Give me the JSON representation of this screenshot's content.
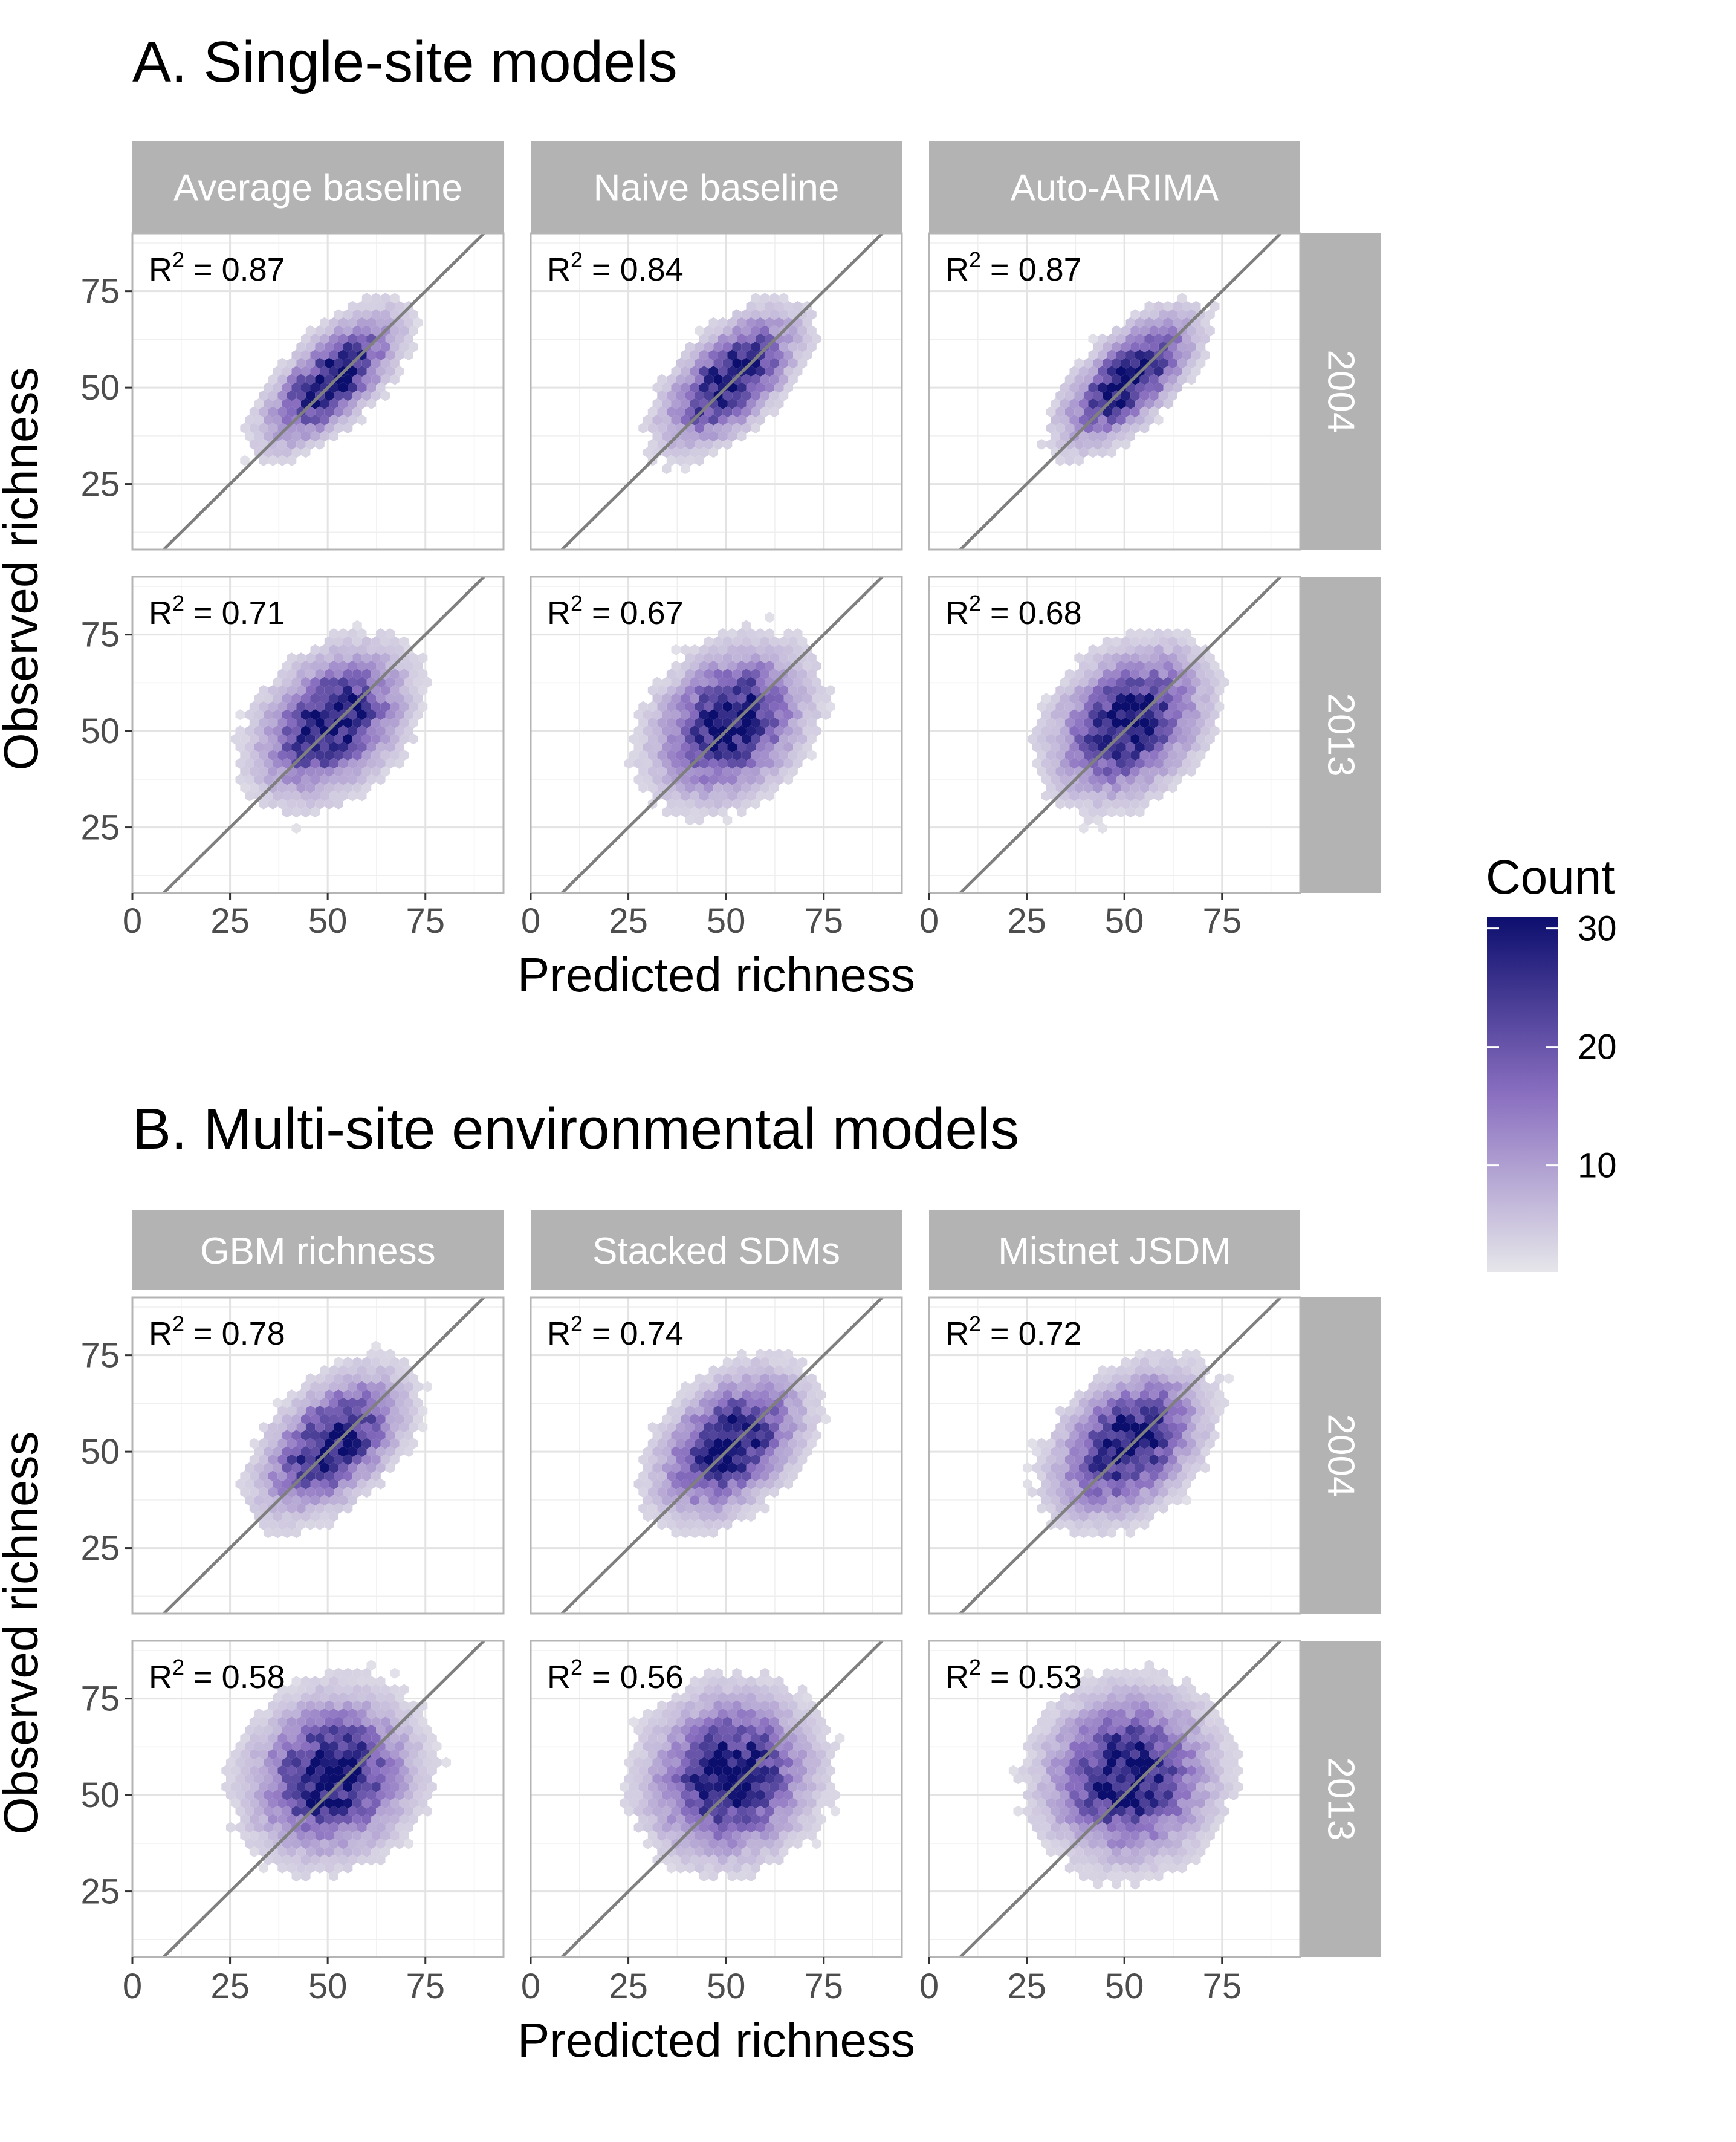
{
  "chart_data": [
    {
      "type": "heatmap",
      "title": "A. Single-site models",
      "xlabel": "Predicted richness",
      "ylabel": "Observed richness",
      "xlim": [
        0,
        95
      ],
      "ylim": [
        8,
        90
      ],
      "x_ticks": [
        "0",
        "25",
        "50",
        "75"
      ],
      "y_ticks": [
        "25",
        "50",
        "75"
      ],
      "columns": [
        "Average baseline",
        "Naive baseline",
        "Auto-ARIMA"
      ],
      "rows": [
        "2004",
        "2013"
      ],
      "identity_line": true,
      "r2": [
        [
          "0.87",
          "0.84",
          "0.87"
        ],
        [
          "0.71",
          "0.67",
          "0.68"
        ]
      ]
    },
    {
      "type": "heatmap",
      "title": "B. Multi-site environmental models",
      "xlabel": "Predicted richness",
      "ylabel": "Observed richness",
      "xlim": [
        0,
        95
      ],
      "ylim": [
        8,
        90
      ],
      "x_ticks": [
        "0",
        "25",
        "50",
        "75"
      ],
      "y_ticks": [
        "25",
        "50",
        "75"
      ],
      "columns": [
        "GBM richness",
        "Stacked SDMs",
        "Mistnet JSDM"
      ],
      "rows": [
        "2004",
        "2013"
      ],
      "identity_line": true,
      "r2": [
        [
          "0.78",
          "0.74",
          "0.72"
        ],
        [
          "0.58",
          "0.56",
          "0.53"
        ]
      ]
    }
  ],
  "legend": {
    "title": "Count",
    "labels": [
      "30",
      "20",
      "10"
    ],
    "values": [
      30,
      20,
      10
    ],
    "range": [
      1,
      31
    ],
    "color_low": "#e6e6ea",
    "color_mid": "#8a6fc0",
    "color_high": "#0c0e6e"
  },
  "colors": {
    "strip": "#b3b3b3",
    "strip_text": "#ffffff",
    "grid": "#e3e3e3",
    "panel_border": "#b5b5b5",
    "identity_line": "#7f7f7f"
  },
  "r2_prefix": "R",
  "r2_sup": "2",
  "r2_eq": " = "
}
